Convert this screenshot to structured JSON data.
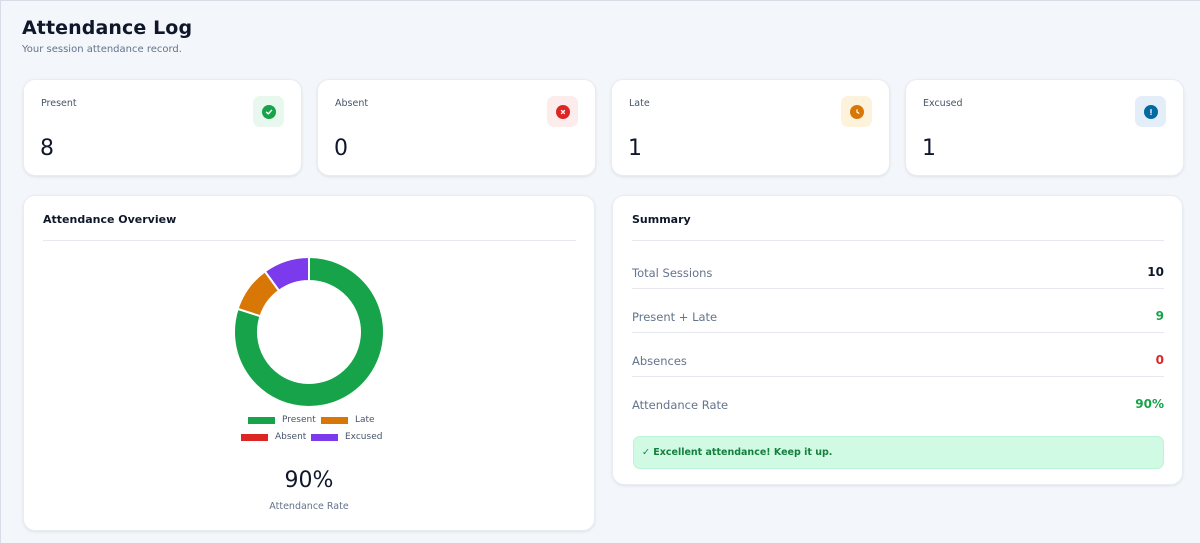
{
  "header": {
    "title": "Attendance Log",
    "subtitle": "Your session attendance record."
  },
  "stats": [
    {
      "label": "Present",
      "value": "8",
      "icon": "check-circle-icon",
      "color": "#16a34a",
      "bg": "#e8f8ee"
    },
    {
      "label": "Absent",
      "value": "0",
      "icon": "x-circle-icon",
      "color": "#dc2626",
      "bg": "#fdecec"
    },
    {
      "label": "Late",
      "value": "1",
      "icon": "clock-icon",
      "color": "#d97706",
      "bg": "#fdf3dc"
    },
    {
      "label": "Excused",
      "value": "1",
      "icon": "alert-circle-icon",
      "color": "#0369a1",
      "bg": "#e3eef9"
    }
  ],
  "overview": {
    "title": "Attendance Overview",
    "rate": "90%",
    "rate_caption": "Attendance Rate"
  },
  "chart_data": {
    "type": "pie",
    "categories": [
      "Present",
      "Late",
      "Absent",
      "Excused"
    ],
    "values": [
      8,
      1,
      0,
      1
    ],
    "colors": [
      "#16a34a",
      "#d97706",
      "#dc2626",
      "#7c3aed"
    ],
    "legend_position": "bottom"
  },
  "summary": {
    "title": "Summary",
    "rows": [
      {
        "label": "Total Sessions",
        "value": "10",
        "color": "#0f172a"
      },
      {
        "label": "Present + Late",
        "value": "9",
        "color": "#16a34a"
      },
      {
        "label": "Absences",
        "value": "0",
        "color": "#dc2626"
      },
      {
        "label": "Attendance Rate",
        "value": "90%",
        "color": "#16a34a"
      }
    ],
    "note": "✓ Excellent attendance! Keep it up."
  }
}
